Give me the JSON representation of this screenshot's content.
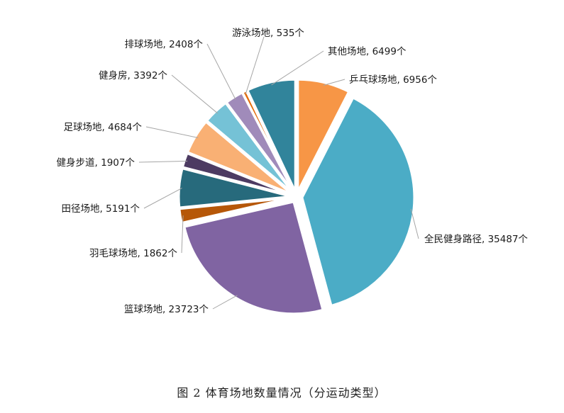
{
  "caption": "图 2   体育场地数量情况（分运动类型）",
  "chart_data": {
    "type": "pie",
    "title": "",
    "slices": [
      {
        "name": "乒乓球场地",
        "value": 6956,
        "label": "乒乓球场地, 6956个",
        "color": "#F79646"
      },
      {
        "name": "全民健身路径",
        "value": 35487,
        "label": "全民健身路径, 35487个",
        "color": "#4BACC6"
      },
      {
        "name": "篮球场地",
        "value": 23723,
        "label": "篮球场地, 23723个",
        "color": "#8064A2"
      },
      {
        "name": "羽毛球场地",
        "value": 1862,
        "label": "羽毛球场地, 1862个",
        "color": "#B65708"
      },
      {
        "name": "田径场地",
        "value": 5191,
        "label": "田径场地, 5191个",
        "color": "#276A7C"
      },
      {
        "name": "健身步道",
        "value": 1907,
        "label": "健身步道, 1907个",
        "color": "#4D3B62"
      },
      {
        "name": "足球场地",
        "value": 4684,
        "label": "足球场地, 4684个",
        "color": "#F9B074"
      },
      {
        "name": "健身房",
        "value": 3392,
        "label": "健身房, 3392个",
        "color": "#75C2D6"
      },
      {
        "name": "排球场地",
        "value": 2408,
        "label": "排球场地, 2408个",
        "color": "#A08BBA"
      },
      {
        "name": "游泳场地",
        "value": 535,
        "label": "游泳场地, 535个",
        "color": "#E46C0A"
      },
      {
        "name": "其他场地",
        "value": 6499,
        "label": "其他场地, 6499个",
        "color": "#31849B"
      }
    ]
  }
}
